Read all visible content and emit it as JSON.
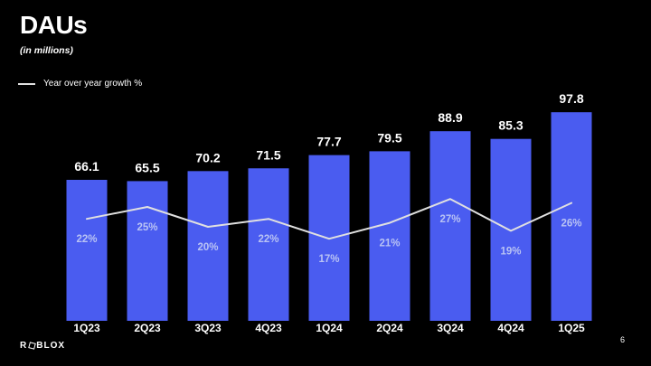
{
  "slide": {
    "title": "DAUs",
    "subtitle": "(in millions)",
    "legend": {
      "label": "Year over year growth %"
    },
    "footer": {
      "logo_prefix": "R",
      "logo_suffix": "BLOX",
      "page_number": "6"
    }
  },
  "colors": {
    "background": "#000000",
    "bar": "#4a5cf0",
    "growth_line": "#e0e0e0",
    "value_label": "#ffffff",
    "pct_label": "#b9c3f4",
    "axis_label": "#ffffff"
  },
  "chart_data": {
    "type": "bar",
    "title": "DAUs",
    "subtitle": "(in millions)",
    "categories": [
      "1Q23",
      "2Q23",
      "3Q23",
      "4Q23",
      "1Q24",
      "2Q24",
      "3Q24",
      "4Q24",
      "1Q25"
    ],
    "series": [
      {
        "name": "DAUs (in millions)",
        "type": "bar",
        "values": [
          66.1,
          65.5,
          70.2,
          71.5,
          77.7,
          79.5,
          88.9,
          85.3,
          97.8
        ]
      },
      {
        "name": "Year over year growth %",
        "type": "line",
        "unit": "%",
        "values": [
          22,
          25,
          20,
          22,
          17,
          21,
          27,
          19,
          26
        ]
      }
    ],
    "xlabel": "",
    "ylabel": "DAUs (millions)",
    "ylim": [
      0,
      105
    ],
    "grid": false,
    "legend_position": "top-left",
    "value_labels_shown": true
  }
}
